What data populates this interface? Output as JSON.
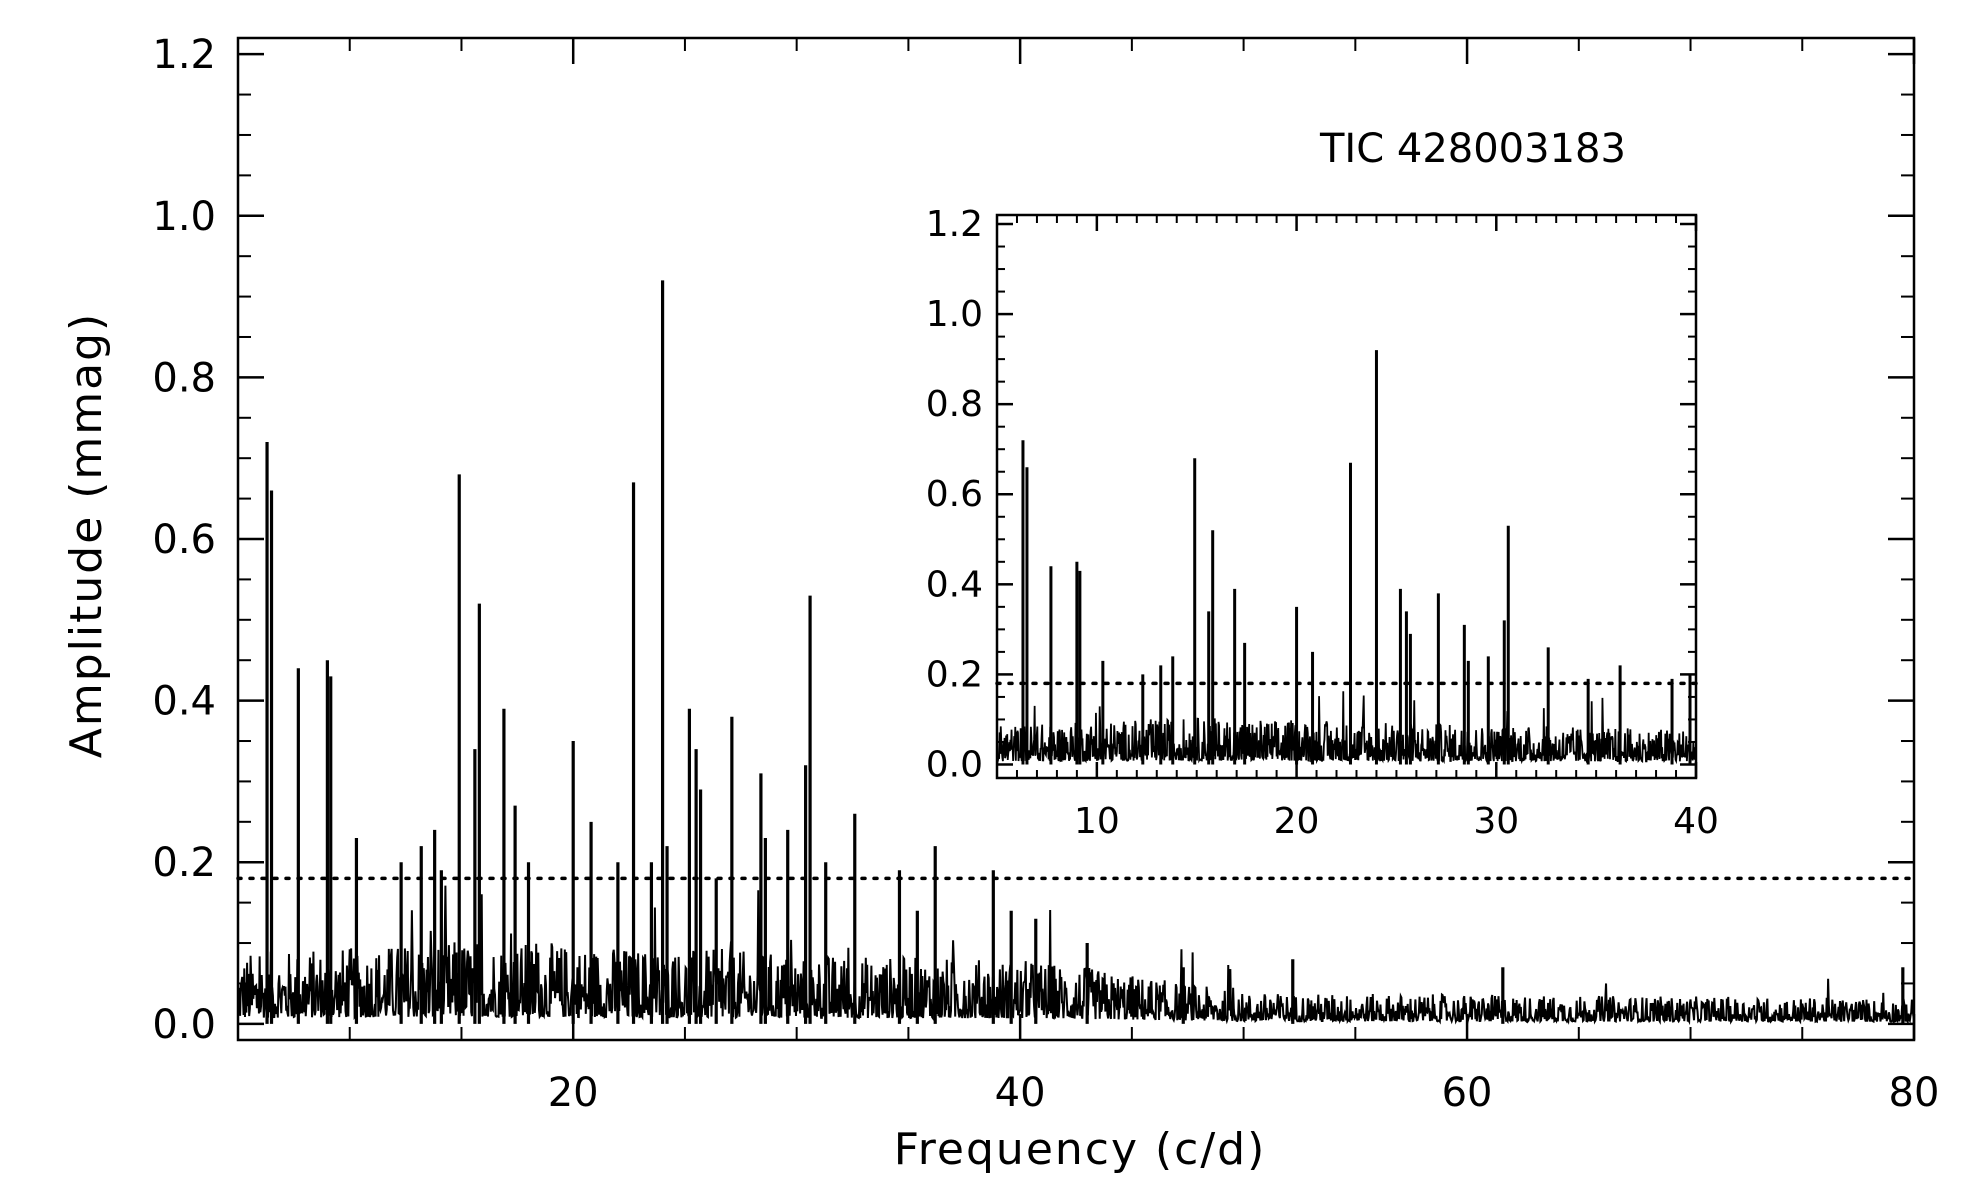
{
  "chart_data": [
    {
      "type": "line",
      "title": "",
      "xlabel": "Frequency (c/d)",
      "ylabel": "Amplitude (mmag)",
      "xlim": [
        5,
        80
      ],
      "ylim": [
        -0.02,
        1.22
      ],
      "xticks": [
        20,
        40,
        60,
        80
      ],
      "xtick_labels": [
        "20",
        "40",
        "60",
        "80"
      ],
      "yticks": [
        0.0,
        0.2,
        0.4,
        0.6,
        0.8,
        1.0,
        1.2
      ],
      "ytick_labels": [
        "0.0",
        "0.2",
        "0.4",
        "0.6",
        "0.8",
        "1.0",
        "1.2"
      ],
      "annotation": "TIC 428003183",
      "threshold": 0.18,
      "noise_level": [
        [
          5,
          0.05
        ],
        [
          15,
          0.06
        ],
        [
          30,
          0.05
        ],
        [
          41,
          0.045
        ],
        [
          45,
          0.035
        ],
        [
          50,
          0.022
        ],
        [
          80,
          0.018
        ]
      ],
      "peaks": [
        {
          "x": 6.3,
          "y": 0.72
        },
        {
          "x": 6.5,
          "y": 0.66
        },
        {
          "x": 7.7,
          "y": 0.44
        },
        {
          "x": 9.0,
          "y": 0.45
        },
        {
          "x": 9.15,
          "y": 0.43
        },
        {
          "x": 10.3,
          "y": 0.23
        },
        {
          "x": 12.3,
          "y": 0.2
        },
        {
          "x": 13.2,
          "y": 0.22
        },
        {
          "x": 13.8,
          "y": 0.24
        },
        {
          "x": 14.1,
          "y": 0.19
        },
        {
          "x": 14.9,
          "y": 0.68
        },
        {
          "x": 15.6,
          "y": 0.34
        },
        {
          "x": 15.8,
          "y": 0.52
        },
        {
          "x": 16.9,
          "y": 0.39
        },
        {
          "x": 17.4,
          "y": 0.27
        },
        {
          "x": 18.0,
          "y": 0.2
        },
        {
          "x": 20.0,
          "y": 0.35
        },
        {
          "x": 20.8,
          "y": 0.25
        },
        {
          "x": 22.0,
          "y": 0.2
        },
        {
          "x": 22.7,
          "y": 0.67
        },
        {
          "x": 23.5,
          "y": 0.2
        },
        {
          "x": 24.0,
          "y": 0.92
        },
        {
          "x": 24.2,
          "y": 0.22
        },
        {
          "x": 25.2,
          "y": 0.39
        },
        {
          "x": 25.5,
          "y": 0.34
        },
        {
          "x": 25.7,
          "y": 0.29
        },
        {
          "x": 26.4,
          "y": 0.18
        },
        {
          "x": 27.1,
          "y": 0.38
        },
        {
          "x": 28.4,
          "y": 0.31
        },
        {
          "x": 28.6,
          "y": 0.23
        },
        {
          "x": 29.6,
          "y": 0.24
        },
        {
          "x": 30.4,
          "y": 0.32
        },
        {
          "x": 30.6,
          "y": 0.53
        },
        {
          "x": 31.3,
          "y": 0.2
        },
        {
          "x": 32.6,
          "y": 0.26
        },
        {
          "x": 34.6,
          "y": 0.19
        },
        {
          "x": 35.4,
          "y": 0.14
        },
        {
          "x": 36.2,
          "y": 0.22
        },
        {
          "x": 38.8,
          "y": 0.19
        },
        {
          "x": 39.6,
          "y": 0.14
        },
        {
          "x": 40.7,
          "y": 0.13
        },
        {
          "x": 43.0,
          "y": 0.1
        },
        {
          "x": 47.3,
          "y": 0.07
        },
        {
          "x": 52.2,
          "y": 0.08
        },
        {
          "x": 61.6,
          "y": 0.07
        },
        {
          "x": 79.5,
          "y": 0.07
        }
      ]
    },
    {
      "type": "line",
      "title": "",
      "xlabel": "",
      "ylabel": "",
      "xlim": [
        5,
        40
      ],
      "ylim": [
        -0.03,
        1.22
      ],
      "xticks": [
        10,
        20,
        30,
        40
      ],
      "xtick_labels": [
        "10",
        "20",
        "30",
        "40"
      ],
      "yticks": [
        0.0,
        0.2,
        0.4,
        0.6,
        0.8,
        1.0,
        1.2
      ],
      "ytick_labels": [
        "0.0",
        "0.2",
        "0.4",
        "0.6",
        "0.8",
        "1.0",
        "1.2"
      ],
      "threshold": 0.18,
      "noise_level": [
        [
          5,
          0.05
        ],
        [
          15,
          0.06
        ],
        [
          30,
          0.05
        ],
        [
          40,
          0.045
        ]
      ],
      "peaks": [
        {
          "x": 6.3,
          "y": 0.72
        },
        {
          "x": 6.5,
          "y": 0.66
        },
        {
          "x": 7.7,
          "y": 0.44
        },
        {
          "x": 9.0,
          "y": 0.45
        },
        {
          "x": 9.15,
          "y": 0.43
        },
        {
          "x": 10.3,
          "y": 0.23
        },
        {
          "x": 12.3,
          "y": 0.2
        },
        {
          "x": 13.2,
          "y": 0.22
        },
        {
          "x": 13.8,
          "y": 0.24
        },
        {
          "x": 14.9,
          "y": 0.68
        },
        {
          "x": 15.6,
          "y": 0.34
        },
        {
          "x": 15.8,
          "y": 0.52
        },
        {
          "x": 16.9,
          "y": 0.39
        },
        {
          "x": 17.4,
          "y": 0.27
        },
        {
          "x": 20.0,
          "y": 0.35
        },
        {
          "x": 20.8,
          "y": 0.25
        },
        {
          "x": 22.7,
          "y": 0.67
        },
        {
          "x": 24.0,
          "y": 0.92
        },
        {
          "x": 25.2,
          "y": 0.39
        },
        {
          "x": 25.5,
          "y": 0.34
        },
        {
          "x": 25.7,
          "y": 0.29
        },
        {
          "x": 27.1,
          "y": 0.38
        },
        {
          "x": 28.4,
          "y": 0.31
        },
        {
          "x": 28.6,
          "y": 0.23
        },
        {
          "x": 29.6,
          "y": 0.24
        },
        {
          "x": 30.4,
          "y": 0.32
        },
        {
          "x": 30.6,
          "y": 0.53
        },
        {
          "x": 32.6,
          "y": 0.26
        },
        {
          "x": 34.6,
          "y": 0.19
        },
        {
          "x": 36.2,
          "y": 0.22
        },
        {
          "x": 38.8,
          "y": 0.19
        },
        {
          "x": 39.7,
          "y": 0.2
        }
      ]
    }
  ]
}
